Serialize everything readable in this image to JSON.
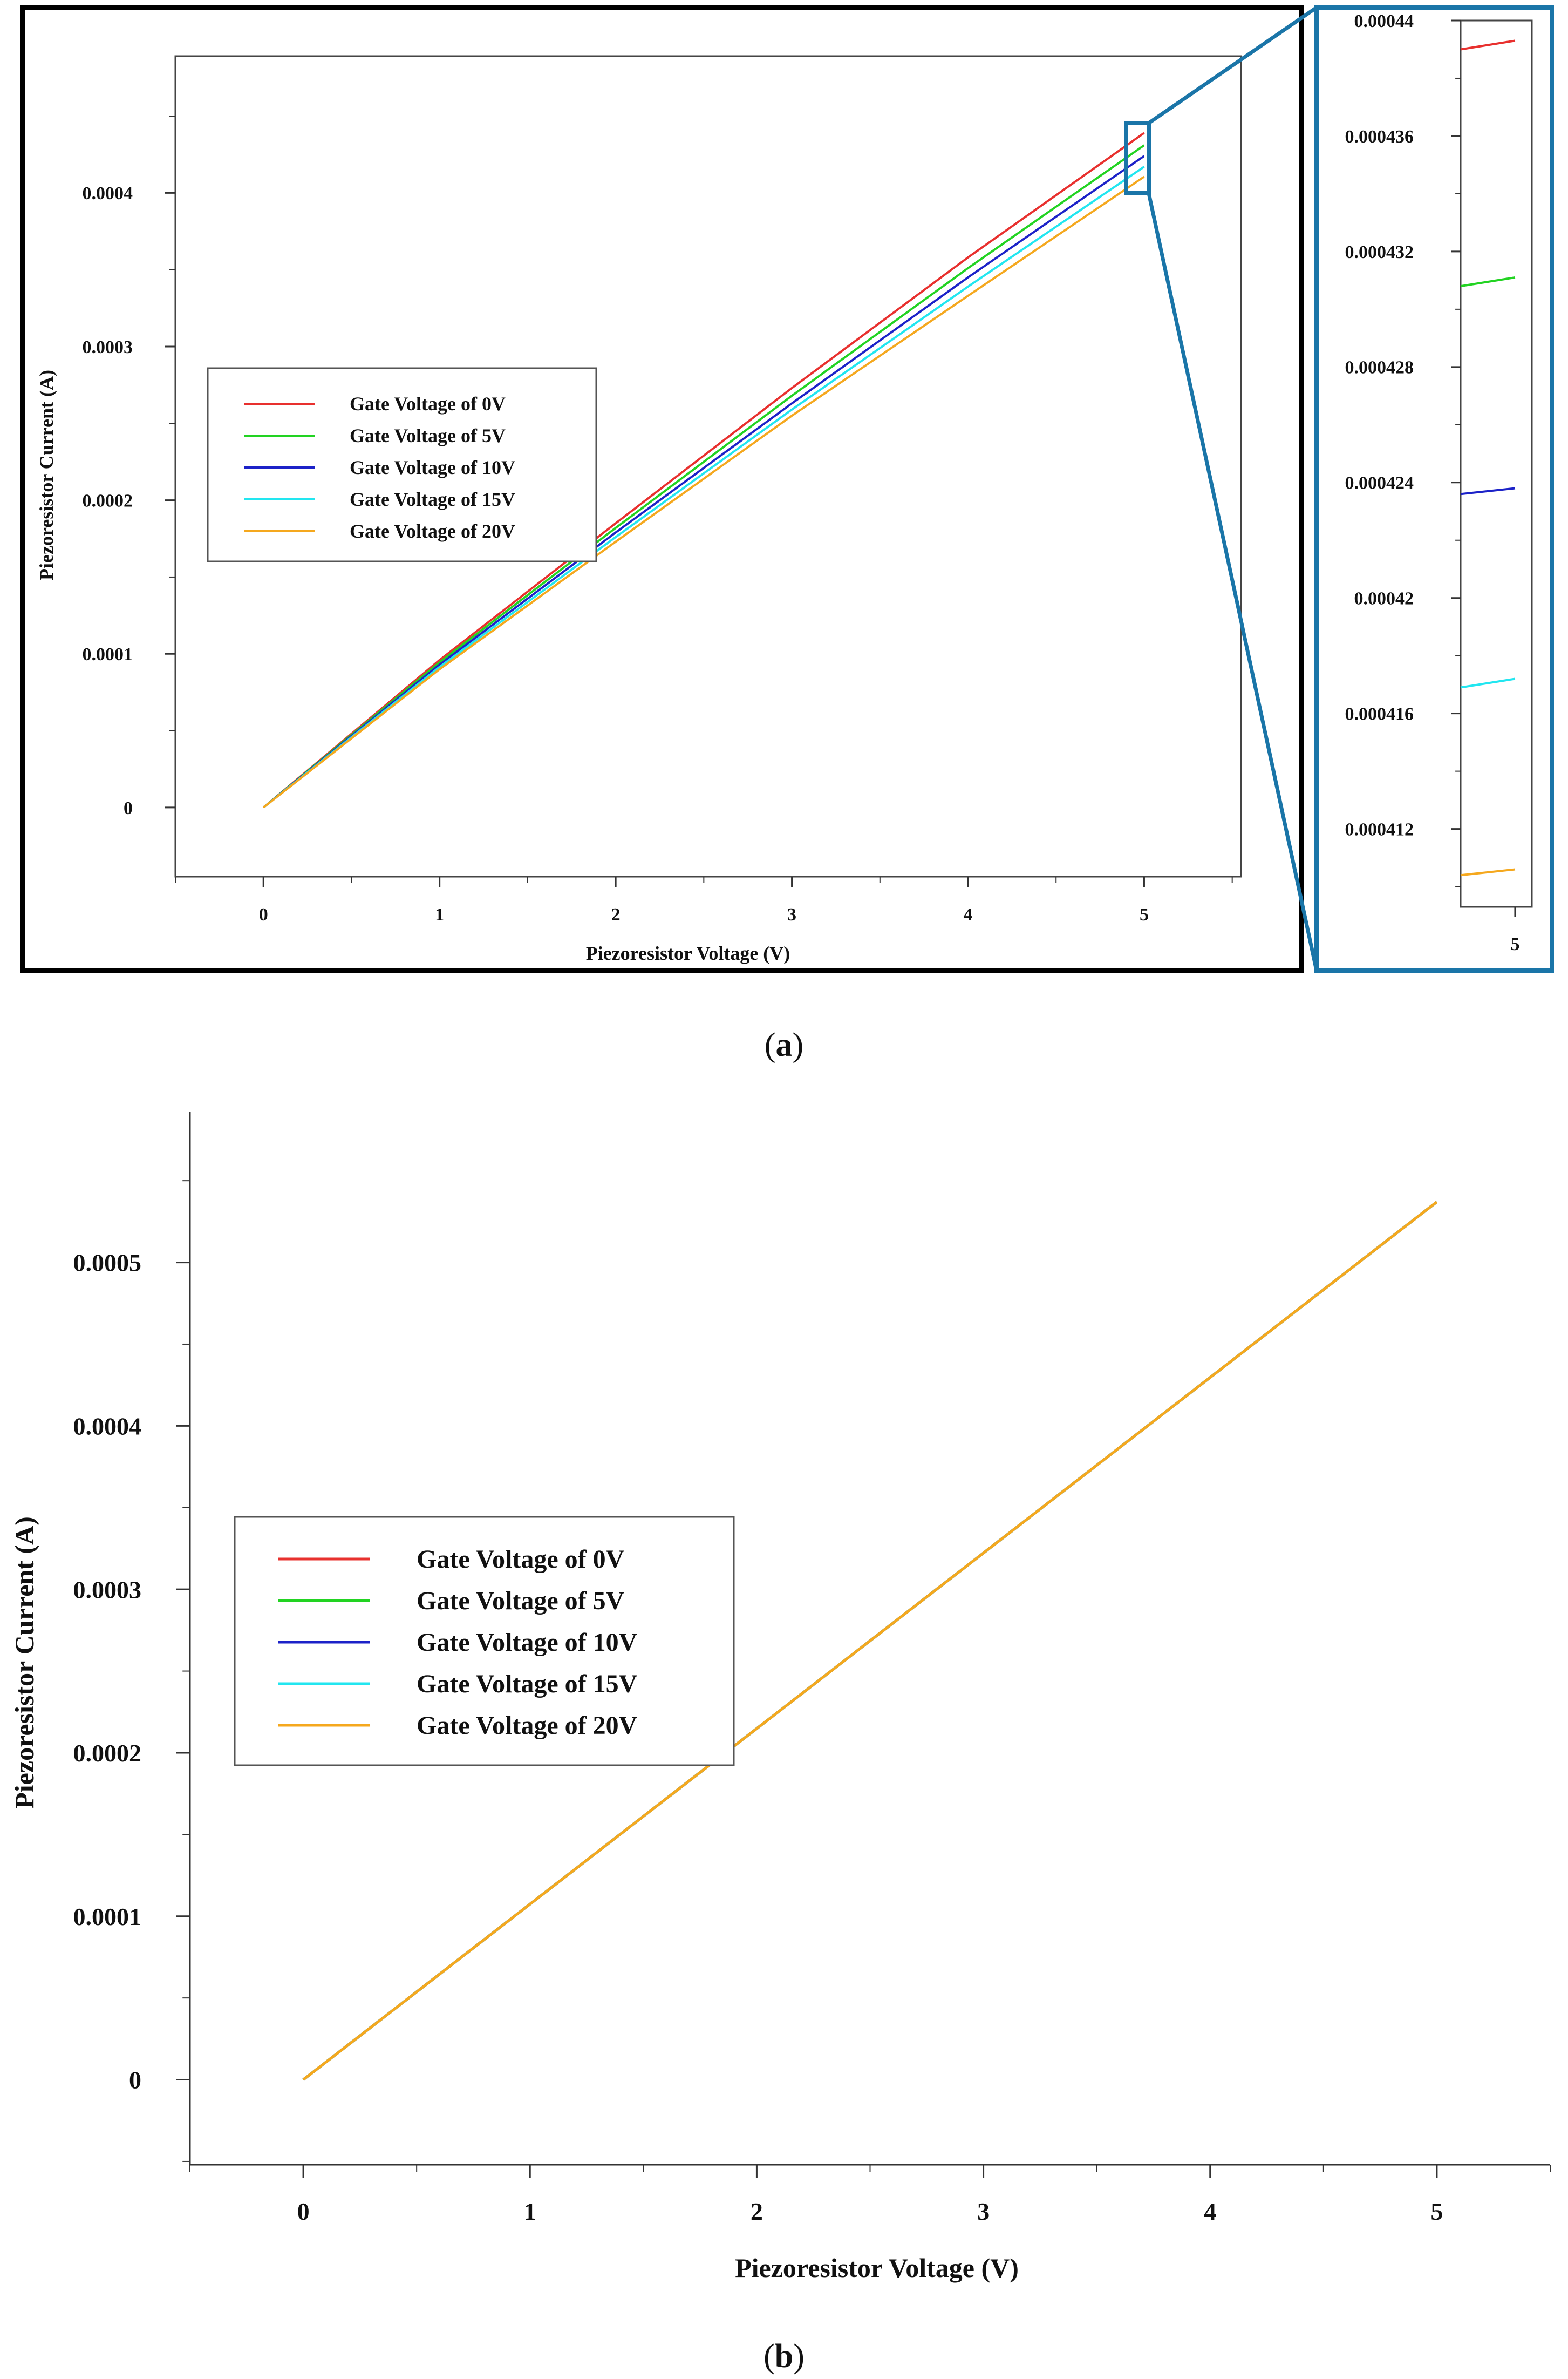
{
  "captions": {
    "a_letter": "a",
    "b_letter": "b"
  },
  "colors": {
    "frame_main": "#000000",
    "zoom_frame": "#1a75a8",
    "axis": "#333333",
    "legend_border": "#333333"
  },
  "chart_data": [
    {
      "id": "a-main",
      "type": "line",
      "xlabel": "Piezoresistor Voltage (V)",
      "ylabel": "Piezoresistor Current (A)",
      "xlim": [
        -0.5,
        5.55
      ],
      "ylim": [
        -4.5e-05,
        0.000489
      ],
      "xticks": [
        0,
        1,
        2,
        3,
        4,
        5
      ],
      "xtick_labels": [
        "0",
        "1",
        "2",
        "3",
        "4",
        "5"
      ],
      "yticks": [
        0,
        0.0001,
        0.0002,
        0.0003,
        0.0004
      ],
      "ytick_labels": [
        "0",
        "0.0001",
        "0.0002",
        "0.0003",
        "0.0004"
      ],
      "legend_position": "center-left",
      "grid": false,
      "series": [
        {
          "name": "Gate Voltage of 0V",
          "color": "#e8302e",
          "x": [
            0,
            1,
            2,
            3,
            4,
            5
          ],
          "y": [
            0,
            9.6e-05,
            0.000185,
            0.000273,
            0.000358,
            0.000439
          ]
        },
        {
          "name": "Gate Voltage of 5V",
          "color": "#22d322",
          "x": [
            0,
            1,
            2,
            3,
            4,
            5
          ],
          "y": [
            0,
            9.45e-05,
            0.000182,
            0.000268,
            0.000351,
            0.000431
          ]
        },
        {
          "name": "Gate Voltage of 10V",
          "color": "#1c22c8",
          "x": [
            0,
            1,
            2,
            3,
            4,
            5
          ],
          "y": [
            0,
            9.3e-05,
            0.000179,
            0.000263,
            0.000345,
            0.000424
          ]
        },
        {
          "name": "Gate Voltage of 15V",
          "color": "#22e6f0",
          "x": [
            0,
            1,
            2,
            3,
            4,
            5
          ],
          "y": [
            0,
            9.15e-05,
            0.000176,
            0.000259,
            0.000339,
            0.000417
          ]
        },
        {
          "name": "Gate Voltage of 20V",
          "color": "#f5a81e",
          "x": [
            0,
            1,
            2,
            3,
            4,
            5
          ],
          "y": [
            0,
            9e-05,
            0.000173,
            0.000255,
            0.000333,
            0.0004105
          ]
        }
      ]
    },
    {
      "id": "a-zoom",
      "type": "line",
      "xlim": [
        4.935,
        5.02
      ],
      "ylim": [
        0.0004093,
        0.00044
      ],
      "xticks": [
        5
      ],
      "xtick_labels": [
        "5"
      ],
      "yticks": [
        0.000412,
        0.000416,
        0.00042,
        0.000424,
        0.000428,
        0.000432,
        0.000436,
        0.00044
      ],
      "ytick_labels": [
        "0.000412",
        "0.000416",
        "0.00042",
        "0.000424",
        "0.000428",
        "0.000432",
        "0.000436",
        "0.00044"
      ],
      "grid": false,
      "series": [
        {
          "color": "#e8302e",
          "x": [
            4.935,
            5.0
          ],
          "y": [
            0.000439,
            0.0004393
          ]
        },
        {
          "color": "#22d322",
          "x": [
            4.935,
            5.0
          ],
          "y": [
            0.0004308,
            0.0004311
          ]
        },
        {
          "color": "#1c22c8",
          "x": [
            4.935,
            5.0
          ],
          "y": [
            0.0004236,
            0.0004238
          ]
        },
        {
          "color": "#22e6f0",
          "x": [
            4.935,
            5.0
          ],
          "y": [
            0.0004169,
            0.0004172
          ]
        },
        {
          "color": "#f5a81e",
          "x": [
            4.935,
            5.0
          ],
          "y": [
            0.0004104,
            0.0004106
          ]
        }
      ]
    },
    {
      "id": "b-main",
      "type": "line",
      "xlabel": "Piezoresistor Voltage (V)",
      "ylabel": "Piezoresistor Current (A)",
      "xlim": [
        -0.5,
        5.5
      ],
      "ylim": [
        -5.2e-05,
        0.000592
      ],
      "xticks": [
        0,
        1,
        2,
        3,
        4,
        5
      ],
      "xtick_labels": [
        "0",
        "1",
        "2",
        "3",
        "4",
        "5"
      ],
      "yticks": [
        0,
        0.0001,
        0.0002,
        0.0003,
        0.0004,
        0.0005
      ],
      "ytick_labels": [
        "0",
        "0.0001",
        "0.0002",
        "0.0003",
        "0.0004",
        "0.0005"
      ],
      "legend_position": "center-left",
      "grid": false,
      "series": [
        {
          "name": "Gate Voltage of 0V",
          "color": "#e8302e",
          "x": [
            0,
            5
          ],
          "y": [
            0,
            0.000537
          ]
        },
        {
          "name": "Gate Voltage of 5V",
          "color": "#22d322",
          "x": [
            0,
            5
          ],
          "y": [
            0,
            0.000537
          ]
        },
        {
          "name": "Gate Voltage of 10V",
          "color": "#1c22c8",
          "x": [
            0,
            5
          ],
          "y": [
            0,
            0.000537
          ]
        },
        {
          "name": "Gate Voltage of 15V",
          "color": "#22e6f0",
          "x": [
            0,
            5
          ],
          "y": [
            0,
            0.000537
          ]
        },
        {
          "name": "Gate Voltage of 20V",
          "color": "#f5a81e",
          "x": [
            0,
            5
          ],
          "y": [
            0,
            0.000537
          ]
        }
      ]
    }
  ]
}
